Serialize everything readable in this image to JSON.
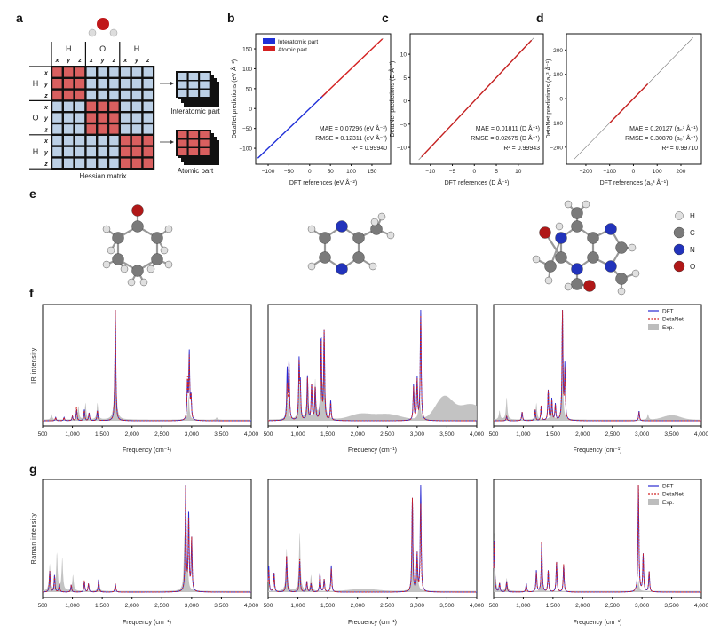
{
  "panel_labels": {
    "a": "a",
    "b": "b",
    "c": "c",
    "d": "d",
    "e": "e",
    "f": "f",
    "g": "g"
  },
  "panel_a": {
    "col_atoms": [
      "H",
      "O",
      "H"
    ],
    "row_atoms": [
      "H",
      "O",
      "H"
    ],
    "coords": [
      "x",
      "y",
      "z"
    ],
    "matrix_label": "Hessian matrix",
    "interatomic_label": "Interatomic part",
    "atomic_label": "Atomic part",
    "colors": {
      "atomic": "#d95f5f",
      "interatomic": "#bcd0e6"
    }
  },
  "panel_e": {
    "legend": [
      "H",
      "C",
      "N",
      "O"
    ],
    "colors": {
      "H": "#e0e0e0",
      "C": "#7a7a7a",
      "N": "#2233bb",
      "O": "#b01818"
    }
  },
  "chart_data": [
    {
      "type": "scatter",
      "panel": "b",
      "xlabel": "DFT references (eV Å⁻²)",
      "ylabel": "DetaNet predictions (eV Å⁻²)",
      "xlim": [
        -130,
        195
      ],
      "ylim": [
        -140,
        188
      ],
      "xticks": [
        -100,
        -50,
        0,
        50,
        100,
        150
      ],
      "yticks": [
        -100,
        -50,
        0,
        50,
        100,
        150
      ],
      "series": [
        {
          "name": "Interatomic part",
          "color": "#1f2fd8",
          "range": [
            -125,
            40
          ]
        },
        {
          "name": "Atomic part",
          "color": "#d42020",
          "range": [
            30,
            175
          ]
        }
      ],
      "stats": [
        "MAE = 0.07296 (eV Å⁻²)",
        "RMSE = 0.12311 (eV Å⁻²)",
        "R² = 0.99940"
      ],
      "legend": "top-left"
    },
    {
      "type": "scatter",
      "panel": "c",
      "xlabel": "DFT references (D Å⁻¹)",
      "ylabel": "DetaNet predictions (D Å⁻¹)",
      "xlim": [
        -14.6,
        15.7
      ],
      "ylim": [
        -13.6,
        14.4
      ],
      "xticks": [
        -10,
        -5,
        0,
        5,
        10
      ],
      "yticks": [
        -10,
        -5,
        0,
        5,
        10
      ],
      "series": [
        {
          "color": "#c42020",
          "range": [
            -12,
            13
          ]
        }
      ],
      "stats": [
        "MAE = 0.01811 (D Å⁻¹)",
        "RMSE = 0.02675 (D Å⁻¹)",
        "R² = 0.99943"
      ]
    },
    {
      "type": "scatter",
      "panel": "d",
      "xlabel": "DFT references (a₀³ Å⁻¹)",
      "ylabel": "DetaNet predictions (a₀³ Å⁻¹)",
      "xlim": [
        -282,
        286
      ],
      "ylim": [
        -270,
        267
      ],
      "xticks": [
        -200,
        -100,
        0,
        100,
        200
      ],
      "yticks": [
        -200,
        -100,
        0,
        100,
        200
      ],
      "series": [
        {
          "color": "#c42020",
          "range": [
            -100,
            60
          ]
        }
      ],
      "stats": [
        "MAE = 0.20127 (a₀³ Å⁻¹)",
        "RMSE = 0.30870 (a₀³ Å⁻¹)",
        "R² = 0.99710"
      ]
    },
    {
      "type": "line",
      "panel": "f",
      "ylabel": "IR intensity",
      "xlabel": "Frequency (cm⁻¹)",
      "xlim": [
        500,
        4000
      ],
      "xticks": [
        "500",
        "1,000",
        "1,500",
        "2,000",
        "2,500",
        "3,000",
        "3,500",
        "4,000"
      ],
      "legend_entries": [
        "DFT",
        "DetaNet",
        "Exp."
      ],
      "colors": {
        "DFT": "#2a2ad0",
        "DetaNet": "#d02020",
        "Exp.": "#bdbdbd"
      },
      "spectra": [
        {
          "peaks": [
            [
              720,
              0.03
            ],
            [
              860,
              0.03
            ],
            [
              1000,
              0.04
            ],
            [
              1070,
              0.1
            ],
            [
              1200,
              0.1
            ],
            [
              1280,
              0.07
            ],
            [
              1420,
              0.09
            ],
            [
              1720,
              1.0
            ],
            [
              2930,
              0.33
            ],
            [
              2960,
              0.6
            ],
            [
              2990,
              0.2
            ]
          ],
          "detanet": [
            0.03,
            0.03,
            0.04,
            0.12,
            0.09,
            0.07,
            0.09,
            1.0,
            0.36,
            0.55,
            0.2
          ],
          "exp": [
            [
              650,
              0.05
            ],
            [
              1100,
              0.12
            ],
            [
              1220,
              0.15
            ],
            [
              1420,
              0.15
            ],
            [
              1720,
              0.95
            ],
            [
              2950,
              0.22
            ],
            [
              3420,
              0.02
            ]
          ],
          "exp_bands": []
        },
        {
          "peaks": [
            [
              820,
              0.45
            ],
            [
              850,
              0.52
            ],
            [
              1020,
              0.53
            ],
            [
              1040,
              0.3
            ],
            [
              1160,
              0.4
            ],
            [
              1230,
              0.33
            ],
            [
              1290,
              0.3
            ],
            [
              1390,
              0.75
            ],
            [
              1440,
              0.8
            ],
            [
              1550,
              0.18
            ],
            [
              2940,
              0.32
            ],
            [
              3000,
              0.38
            ],
            [
              3060,
              1.0
            ]
          ],
          "detanet": [
            0.3,
            0.52,
            0.5,
            0.28,
            0.38,
            0.33,
            0.3,
            0.72,
            0.8,
            0.16,
            0.3,
            0.36,
            0.95
          ],
          "exp": [
            [
              820,
              0.3
            ],
            [
              1020,
              0.45
            ],
            [
              1160,
              0.4
            ],
            [
              1290,
              0.35
            ],
            [
              1390,
              0.6
            ],
            [
              1440,
              0.7
            ],
            [
              3040,
              0.3
            ]
          ],
          "exp_bands": [
            [
              2050,
              0.05,
              250
            ],
            [
              2500,
              0.05,
              300
            ],
            [
              3450,
              0.2,
              200
            ],
            [
              3900,
              0.14,
              300
            ]
          ]
        },
        {
          "peaks": [
            [
              720,
              0.04
            ],
            [
              980,
              0.08
            ],
            [
              1200,
              0.1
            ],
            [
              1300,
              0.12
            ],
            [
              1420,
              0.28
            ],
            [
              1480,
              0.2
            ],
            [
              1540,
              0.15
            ],
            [
              1660,
              1.0
            ],
            [
              1700,
              0.5
            ],
            [
              2950,
              0.09
            ]
          ],
          "detanet": [
            0.04,
            0.08,
            0.1,
            0.14,
            0.28,
            0.18,
            0.14,
            1.0,
            0.45,
            0.08
          ],
          "exp": [
            [
              600,
              0.08
            ],
            [
              720,
              0.2
            ],
            [
              1220,
              0.15
            ],
            [
              1480,
              0.2
            ],
            [
              1660,
              0.5
            ],
            [
              3100,
              0.05
            ]
          ],
          "exp_bands": [
            [
              3500,
              0.04,
              200
            ]
          ]
        }
      ]
    },
    {
      "type": "line",
      "panel": "g",
      "ylabel": "Raman intensity",
      "xlabel": "Frequency (cm⁻¹)",
      "xlim": [
        500,
        4000
      ],
      "xticks": [
        "500",
        "1,000",
        "1,500",
        "2,000",
        "2,500",
        "3,000",
        "3,500",
        "4,000"
      ],
      "legend_entries": [
        "DFT",
        "DetaNet",
        "Exp."
      ],
      "colors": {
        "DFT": "#2a2ad0",
        "DetaNet": "#d02020",
        "Exp.": "#bdbdbd"
      },
      "spectra": [
        {
          "peaks": [
            [
              620,
              0.2
            ],
            [
              700,
              0.16
            ],
            [
              780,
              0.08
            ],
            [
              980,
              0.07
            ],
            [
              1200,
              0.1
            ],
            [
              1270,
              0.08
            ],
            [
              1440,
              0.12
            ],
            [
              1720,
              0.08
            ],
            [
              2900,
              1.0
            ],
            [
              2950,
              0.75
            ],
            [
              3000,
              0.5
            ]
          ],
          "detanet": [
            0.2,
            0.15,
            0.08,
            0.07,
            0.11,
            0.08,
            0.11,
            0.08,
            1.0,
            0.7,
            0.5
          ],
          "exp": [
            [
              620,
              0.25
            ],
            [
              740,
              0.35
            ],
            [
              830,
              0.3
            ],
            [
              1010,
              0.15
            ],
            [
              1440,
              0.1
            ],
            [
              2880,
              0.5
            ],
            [
              2930,
              0.3
            ]
          ],
          "exp_bands": []
        },
        {
          "peaks": [
            [
              510,
              0.25
            ],
            [
              600,
              0.18
            ],
            [
              810,
              0.35
            ],
            [
              1030,
              0.3
            ],
            [
              1150,
              0.1
            ],
            [
              1220,
              0.08
            ],
            [
              1370,
              0.18
            ],
            [
              1440,
              0.12
            ],
            [
              1560,
              0.25
            ],
            [
              2920,
              0.88
            ],
            [
              3000,
              0.35
            ],
            [
              3060,
              1.0
            ]
          ],
          "detanet": [
            0.22,
            0.18,
            0.35,
            0.32,
            0.1,
            0.08,
            0.18,
            0.12,
            0.22,
            0.88,
            0.35,
            0.82
          ],
          "exp": [
            [
              810,
              0.4
            ],
            [
              1030,
              0.55
            ],
            [
              1220,
              0.15
            ],
            [
              2920,
              0.4
            ],
            [
              3000,
              0.3
            ]
          ],
          "exp_bands": [
            [
              2100,
              0.02,
              300
            ]
          ]
        },
        {
          "peaks": [
            [
              510,
              0.5
            ],
            [
              600,
              0.08
            ],
            [
              720,
              0.1
            ],
            [
              1050,
              0.08
            ],
            [
              1220,
              0.2
            ],
            [
              1310,
              0.48
            ],
            [
              1420,
              0.2
            ],
            [
              1560,
              0.28
            ],
            [
              1680,
              0.25
            ],
            [
              2940,
              1.0
            ],
            [
              3020,
              0.35
            ],
            [
              3120,
              0.19
            ]
          ],
          "detanet": [
            0.5,
            0.08,
            0.1,
            0.07,
            0.18,
            0.48,
            0.2,
            0.28,
            0.26,
            1.0,
            0.35,
            0.19
          ],
          "exp": [
            [
              510,
              0.55
            ],
            [
              720,
              0.12
            ],
            [
              1310,
              0.1
            ],
            [
              2940,
              0.1
            ]
          ],
          "exp_bands": []
        }
      ]
    }
  ]
}
